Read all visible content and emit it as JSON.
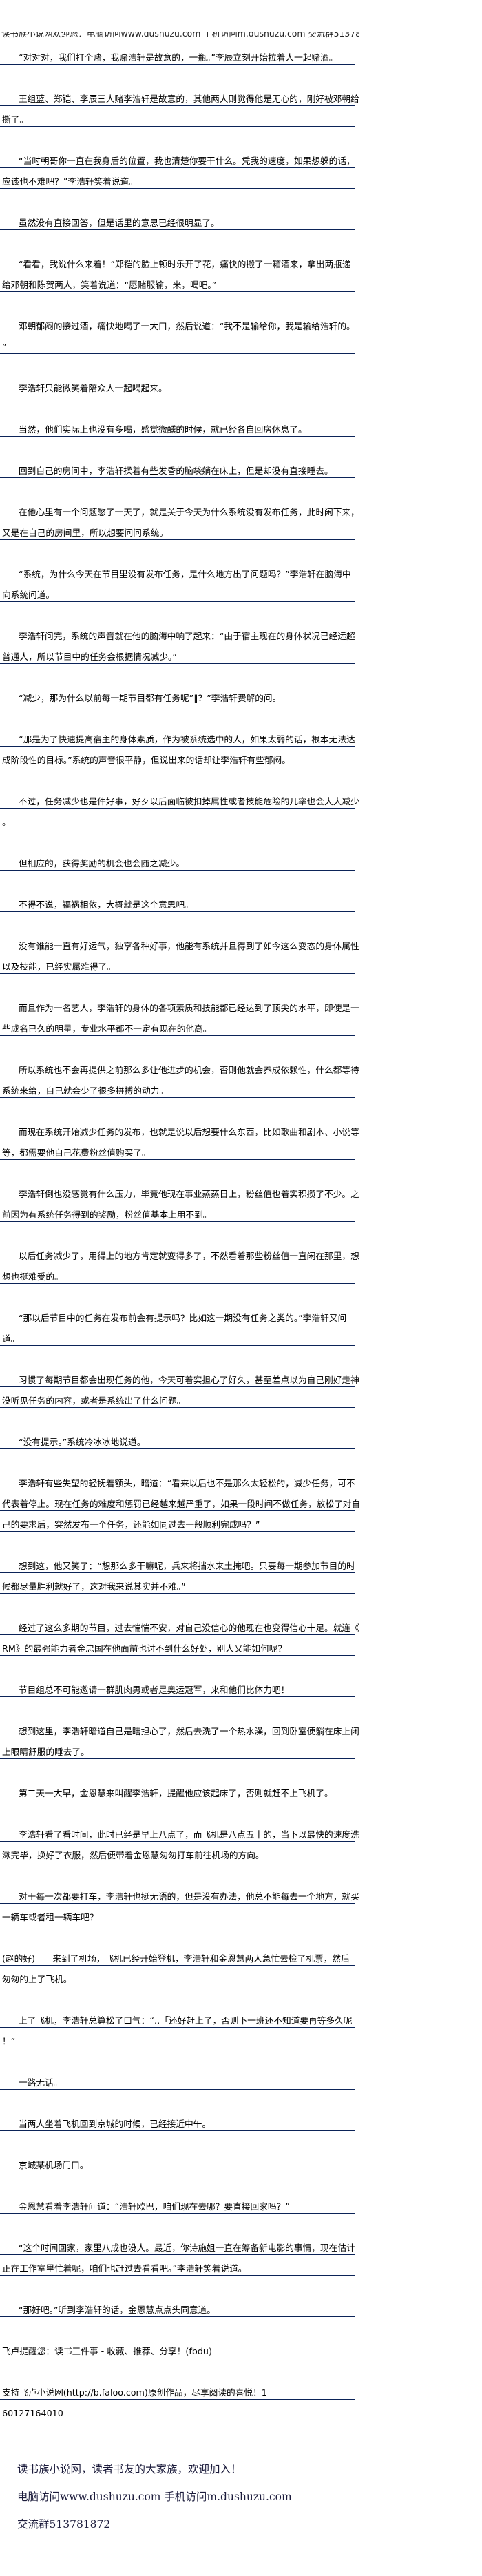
{
  "header": {
    "text": "读书族小说网欢迎您：电脑访问www.dushuzu.com 手机访问m.dushuzu.com 交流群513781872"
  },
  "colors": {
    "rule_line": "#0b2358",
    "footer_text": "#1c1c3c"
  },
  "paragraphs": [
    {
      "indent": true,
      "lines": [
        "“对对对，我们打个赌，我赌浩轩是故意的，一瓶。”李辰立刻开始拉着人一起赌酒。"
      ]
    },
    {
      "indent": true,
      "lines": [
        "王组蓝、郑铠、李辰三人赌李浩轩是故意的，其他两人则觉得他是无心的，刚好被邓朝给",
        "撕了。"
      ]
    },
    {
      "indent": true,
      "lines": [
        "“当时朝哥你一直在我身后的位置，我也清楚你要干什么。凭我的速度，如果想躲的话，",
        "应该也不难吧？”李浩轩笑着说道。"
      ]
    },
    {
      "indent": true,
      "lines": [
        "虽然没有直接回答，但是话里的意思已经很明显了。"
      ]
    },
    {
      "indent": true,
      "lines": [
        "“看看，我说什么来着！”郑铠的脸上顿时乐开了花，痛快的搬了一箱酒来，拿出两瓶递",
        "给邓朝和陈贺两人，笑着说道：“愿赌服输，来，喝吧。”"
      ]
    },
    {
      "indent": true,
      "lines": [
        "邓朝郁闷的接过酒，痛快地喝了一大口，然后说道：“我不是输给你，我是输给浩轩的。",
        "”"
      ]
    },
    {
      "indent": true,
      "lines": [
        "李浩轩只能微笑着陪众人一起喝起来。"
      ]
    },
    {
      "indent": true,
      "lines": [
        "当然，他们实际上也没有多喝，感觉微醺的时候，就已经各自回房休息了。"
      ]
    },
    {
      "indent": true,
      "lines": [
        "回到自己的房间中，李浩轩揉着有些发昏的脑袋躺在床上，但是却没有直接睡去。"
      ]
    },
    {
      "indent": true,
      "lines": [
        "在他心里有一个问题憋了一天了，就是关于今天为什么系统没有发布任务，此时闲下来，",
        "又是在自己的房间里，所以想要问问系统。"
      ]
    },
    {
      "indent": true,
      "lines": [
        "“系统，为什么今天在节目里没有发布任务，是什么地方出了问题吗？”李浩轩在脑海中",
        "向系统问道。"
      ]
    },
    {
      "indent": true,
      "lines": [
        "李浩轩问完，系统的声音就在他的脑海中响了起来：“由于宿主现在的身体状况已经远超",
        "普通人，所以节目中的任务会根据情况减少。”"
      ]
    },
    {
      "indent": true,
      "lines": [
        "“减少，那为什么以前每一期节目都有任务呢”‖？”李浩轩费解的问。"
      ]
    },
    {
      "indent": true,
      "lines": [
        "“那是为了快速提高宿主的身体素质，作为被系统选中的人，如果太弱的话，根本无法达",
        "成阶段性的目标。”系统的声音很平静，但说出来的话却让李浩轩有些郁闷。"
      ]
    },
    {
      "indent": true,
      "lines": [
        "不过，任务减少也是件好事，好歹以后面临被扣掉属性或者技能危险的几率也会大大减少",
        "。"
      ]
    },
    {
      "indent": true,
      "lines": [
        "但相应的，获得奖励的机会也会随之减少。"
      ]
    },
    {
      "indent": true,
      "lines": [
        "不得不说，福祸相依，大概就是这个意思吧。"
      ]
    },
    {
      "indent": true,
      "lines": [
        "没有谁能一直有好运气，独享各种好事，他能有系统并且得到了如今这么变态的身体属性",
        "以及技能，已经实属难得了。"
      ]
    },
    {
      "indent": true,
      "lines": [
        "而且作为一名艺人，李浩轩的身体的各项素质和技能都已经达到了顶尖的水平，即使是一",
        "些成名已久的明星，专业水平都不一定有现在的他高。"
      ]
    },
    {
      "indent": true,
      "lines": [
        "所以系统也不会再提供之前那么多让他进步的机会，否则他就会养成依赖性，什么都等待",
        "系统来给，自己就会少了很多拼搏的动力。"
      ]
    },
    {
      "indent": true,
      "lines": [
        "而现在系统开始减少任务的发布，也就是说以后想要什么东西，比如歌曲和剧本、小说等",
        "等，都需要他自己花费粉丝值购买了。"
      ]
    },
    {
      "indent": true,
      "lines": [
        "李浩轩倒也没感觉有什么压力，毕竟他现在事业蒸蒸日上，粉丝值也着实积攒了不少。之",
        "前因为有系统任务得到的奖励，粉丝值基本上用不到。"
      ]
    },
    {
      "indent": true,
      "lines": [
        "以后任务减少了，用得上的地方肯定就变得多了，不然看着那些粉丝值一直闲在那里，想",
        "想也挺难受的。"
      ]
    },
    {
      "indent": true,
      "lines": [
        "“那以后节目中的任务在发布前会有提示吗？比如这一期没有任务之类的。”李浩轩又问",
        "道。"
      ]
    },
    {
      "indent": true,
      "lines": [
        "习惯了每期节目都会出现任务的他，今天可着实担心了好久，甚至差点以为自己刚好走神",
        "没听见任务的内容，或者是系统出了什么问题。"
      ]
    },
    {
      "indent": true,
      "lines": [
        "“没有提示。”系统冷冰冰地说道。"
      ]
    },
    {
      "indent": true,
      "lines": [
        "李浩轩有些失望的轻抚着额头，暗道：“看来以后也不是那么太轻松的，减少任务，可不",
        "代表着停止。现在任务的难度和惩罚已经越来越严重了，如果一段时间不做任务，放松了对自",
        "己的要求后，突然发布一个任务，还能如同过去一般顺利完成吗？”"
      ]
    },
    {
      "indent": true,
      "lines": [
        "想到这，他又笑了：“想那么多干嘛呢，兵来将挡水来土掩吧。只要每一期参加节目的时",
        "候都尽量胜利就好了，这对我来说其实并不难。”"
      ]
    },
    {
      "indent": true,
      "lines": [
        "经过了这么多期的节目，过去惴惴不安，对自己没信心的他现在也变得信心十足。就连《",
        "RM》的最强能力者金忠国在他面前也讨不到什么好处，别人又能如何呢？"
      ]
    },
    {
      "indent": true,
      "lines": [
        "节目组总不可能邀请一群肌肉男或者是奥运冠军，来和他们比体力吧！"
      ]
    },
    {
      "indent": true,
      "lines": [
        "想到这里，李浩轩暗道自己是瞎担心了，然后去洗了一个热水澡，回到卧室便躺在床上闭",
        "上眼睛舒服的睡去了。"
      ]
    },
    {
      "indent": true,
      "lines": [
        "第二天一大早，金恩慧来叫醒李浩轩，提醒他应该起床了，否则就赶不上飞机了。"
      ]
    },
    {
      "indent": true,
      "lines": [
        "李浩轩看了看时间，此时已经是早上八点了，而飞机是八点五十的，当下以最快的速度洗",
        "漱完毕，换好了衣服，然后便带着金恩慧匆匆打车前往机场的方向。"
      ]
    },
    {
      "indent": true,
      "lines": [
        "对于每一次都要打车，李浩轩也挺无语的，但是没有办法，他总不能每去一个地方，就买",
        "一辆车或者租一辆车吧？"
      ]
    },
    {
      "indent": false,
      "lines": [
        "(赵的好)　　来到了机场，飞机已经开始登机，李浩轩和金恩慧两人急忙去检了机票，然后",
        "匆匆的上了飞机。"
      ]
    },
    {
      "indent": true,
      "lines": [
        "上了飞机，李浩轩总算松了口气：“‥「还好赶上了，否则下一班还不知道要再等多久呢",
        "！”"
      ]
    },
    {
      "indent": true,
      "lines": [
        "一路无话。"
      ]
    },
    {
      "indent": true,
      "lines": [
        "当两人坐着飞机回到京城的时候，已经接近中午。"
      ]
    },
    {
      "indent": true,
      "lines": [
        "京城某机场门口。"
      ]
    },
    {
      "indent": true,
      "lines": [
        "金恩慧看着李浩轩问道：“浩轩欧巴，咱们现在去哪？要直接回家吗？”"
      ]
    },
    {
      "indent": true,
      "lines": [
        "“这个时间回家，家里八成也没人。最近，你诗施姐一直在筹备新电影的事情，现在估计",
        "正在工作室里忙着呢，咱们也赶过去看看吧。”李浩轩笑着说道。"
      ]
    },
    {
      "indent": true,
      "lines": [
        "“那好吧。”听到李浩轩的话，金恩慧点点头同意道。"
      ]
    },
    {
      "indent": false,
      "lines": [
        "飞卢提醒您：读书三件事 - 收藏、推荐、分享！(fbdu)"
      ]
    },
    {
      "indent": false,
      "lines": [
        "支持飞卢小说网(http://b.faloo.com)原创作品，尽享阅读的喜悦！1",
        "60127164010"
      ]
    }
  ],
  "footer": {
    "lines": [
      "读书族小说网，读者书友的大家族，欢迎加入！",
      "电脑访问www.dushuzu.com 手机访问m.dushuzu.com",
      "交流群513781872"
    ]
  }
}
